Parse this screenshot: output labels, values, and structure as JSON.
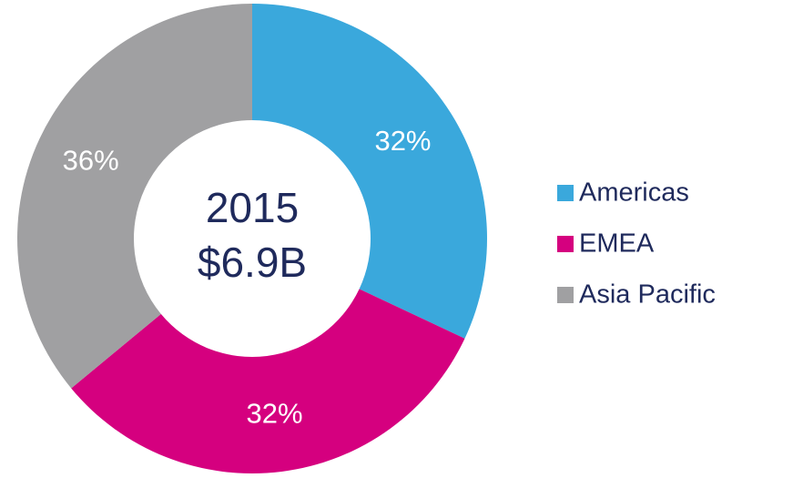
{
  "chart_data": {
    "type": "donut",
    "center_text": [
      "2015",
      "$6.9B"
    ],
    "categories": [
      "Americas",
      "EMEA",
      "Asia Pacific"
    ],
    "values": [
      32,
      32,
      36
    ],
    "value_labels": [
      "32%",
      "32%",
      "36%"
    ],
    "colors": [
      "#3aa8dc",
      "#d5007f",
      "#a0a0a2"
    ],
    "legend": "right"
  }
}
